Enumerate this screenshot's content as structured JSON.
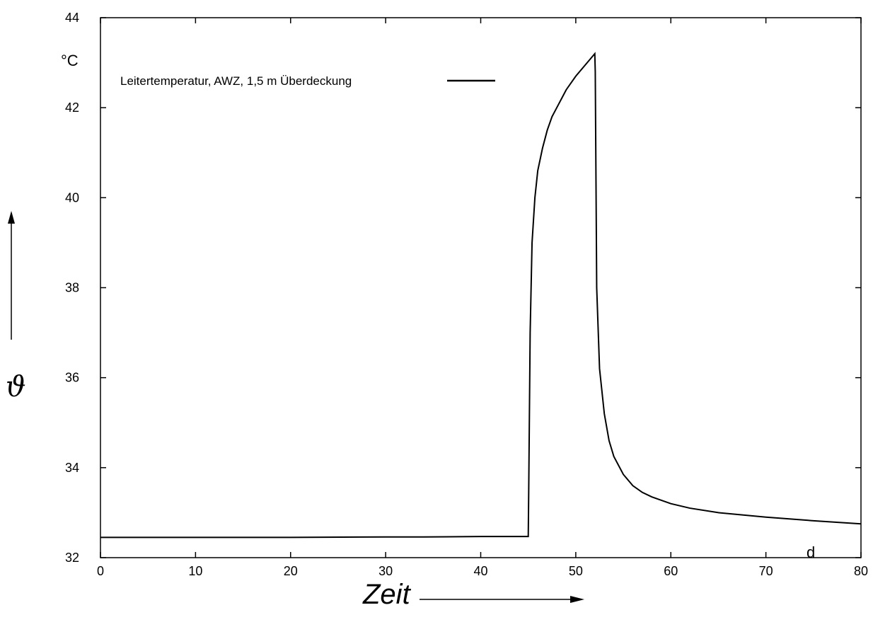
{
  "chart_data": {
    "type": "line",
    "title": "",
    "xlabel": "Zeit",
    "ylabel": "ϑ",
    "x_unit": "d",
    "y_unit": "°C",
    "xlim": [
      0,
      80
    ],
    "ylim": [
      32,
      44
    ],
    "x_ticks": [
      0,
      10,
      20,
      30,
      40,
      50,
      60,
      70,
      80
    ],
    "y_ticks": [
      32,
      34,
      36,
      38,
      40,
      42,
      44
    ],
    "grid": false,
    "legend_position": "top-left",
    "series": [
      {
        "name": "Leitertemperatur, AWZ, 1,5  m Überdeckung",
        "color": "#000000",
        "x": [
          0,
          10,
          20,
          30,
          34,
          40,
          45.0,
          45.05,
          45.2,
          45.4,
          45.7,
          46.0,
          46.5,
          47.0,
          47.5,
          48.0,
          49.0,
          50.0,
          51.0,
          52.0,
          52.05,
          52.2,
          52.5,
          53.0,
          53.5,
          54.0,
          55.0,
          56.0,
          57.0,
          58.0,
          60.0,
          62.0,
          65.0,
          70.0,
          75.0,
          80.0
        ],
        "y": [
          32.45,
          32.45,
          32.45,
          32.46,
          32.46,
          32.47,
          32.47,
          33.5,
          37.0,
          39.0,
          40.0,
          40.6,
          41.1,
          41.5,
          41.8,
          42.0,
          42.4,
          42.7,
          42.95,
          43.2,
          42.8,
          38.0,
          36.2,
          35.2,
          34.6,
          34.25,
          33.85,
          33.6,
          33.45,
          33.35,
          33.2,
          33.1,
          33.0,
          32.9,
          32.82,
          32.75
        ]
      }
    ]
  }
}
